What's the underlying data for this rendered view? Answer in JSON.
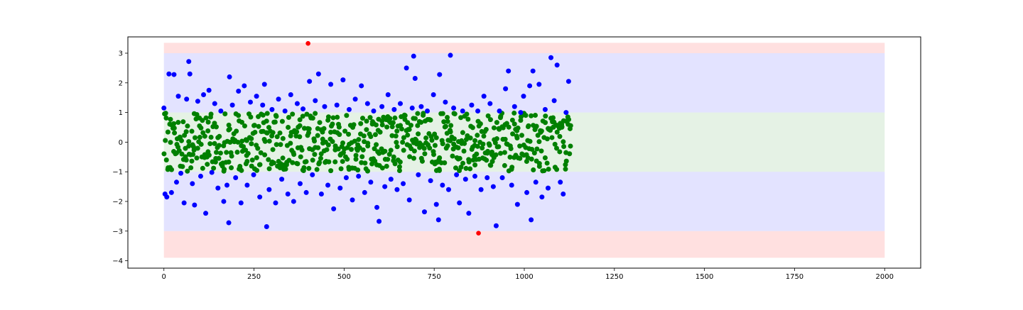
{
  "chart_data": {
    "type": "scatter",
    "title": "",
    "xlabel": "",
    "ylabel": "",
    "xlim": [
      -100,
      2100
    ],
    "ylim": [
      -4.25,
      3.55
    ],
    "x_ticks": [
      0,
      250,
      500,
      750,
      1000,
      1250,
      1500,
      1750,
      2000
    ],
    "x_tick_labels": [
      "0",
      "250",
      "500",
      "750",
      "1000",
      "1250",
      "1500",
      "1750",
      "2000"
    ],
    "y_ticks": [
      3,
      2,
      1,
      0,
      -1,
      -2,
      -3,
      -4
    ],
    "y_tick_labels": [
      "3",
      "2",
      "1",
      "0",
      "−1",
      "−2",
      "−3",
      "−4"
    ],
    "grid": false,
    "bands": [
      {
        "name": "",
        "x_range": [
          0,
          2000
        ],
        "y_range": [
          3.0,
          3.35
        ],
        "color": "#ff9999",
        "opacity": 0.3
      },
      {
        "name": "",
        "x_range": [
          0,
          2000
        ],
        "y_range": [
          -3.9,
          -3.0
        ],
        "color": "#ff9999",
        "opacity": 0.3
      },
      {
        "name": "",
        "x_range": [
          0,
          2000
        ],
        "y_range": [
          1.0,
          3.0
        ],
        "color": "#9999ff",
        "opacity": 0.27
      },
      {
        "name": "",
        "x_range": [
          0,
          2000
        ],
        "y_range": [
          -3.0,
          -1.0
        ],
        "color": "#9999ff",
        "opacity": 0.27
      },
      {
        "name": "",
        "x_range": [
          0,
          2000
        ],
        "y_range": [
          -1.0,
          1.0
        ],
        "color": "#99cc99",
        "opacity": 0.25
      }
    ],
    "series": [
      {
        "color": "#ff0000",
        "points": [
          {
            "x": 400,
            "y": 3.33
          },
          {
            "x": 873,
            "y": -3.07
          }
        ]
      },
      {
        "color": "#0000ff",
        "points": [
          {
            "x": 0,
            "y": 1.15
          },
          {
            "x": 3,
            "y": -1.75
          },
          {
            "x": 8,
            "y": -1.85
          },
          {
            "x": 14,
            "y": 2.3
          },
          {
            "x": 21,
            "y": -1.7
          },
          {
            "x": 28,
            "y": 2.28
          },
          {
            "x": 35,
            "y": -1.35
          },
          {
            "x": 40,
            "y": 1.55
          },
          {
            "x": 47,
            "y": -1.05
          },
          {
            "x": 56,
            "y": -2.05
          },
          {
            "x": 63,
            "y": 1.45
          },
          {
            "x": 69,
            "y": 2.72
          },
          {
            "x": 72,
            "y": 2.3
          },
          {
            "x": 79,
            "y": -1.4
          },
          {
            "x": 85,
            "y": -2.12
          },
          {
            "x": 94,
            "y": 1.38
          },
          {
            "x": 102,
            "y": -1.15
          },
          {
            "x": 110,
            "y": 1.6
          },
          {
            "x": 116,
            "y": -2.4
          },
          {
            "x": 125,
            "y": 1.75
          },
          {
            "x": 133,
            "y": -1.02
          },
          {
            "x": 141,
            "y": 1.3
          },
          {
            "x": 150,
            "y": -1.55
          },
          {
            "x": 158,
            "y": 1.05
          },
          {
            "x": 166,
            "y": -2.0
          },
          {
            "x": 175,
            "y": -1.45
          },
          {
            "x": 182,
            "y": 2.2
          },
          {
            "x": 180,
            "y": -2.72
          },
          {
            "x": 190,
            "y": 1.25
          },
          {
            "x": 199,
            "y": -1.2
          },
          {
            "x": 207,
            "y": 1.72
          },
          {
            "x": 214,
            "y": -2.05
          },
          {
            "x": 223,
            "y": 1.9
          },
          {
            "x": 231,
            "y": -1.45
          },
          {
            "x": 240,
            "y": 1.35
          },
          {
            "x": 249,
            "y": -1.1
          },
          {
            "x": 257,
            "y": 1.55
          },
          {
            "x": 266,
            "y": -1.85
          },
          {
            "x": 274,
            "y": 1.25
          },
          {
            "x": 279,
            "y": 1.95
          },
          {
            "x": 285,
            "y": -2.85
          },
          {
            "x": 292,
            "y": -1.6
          },
          {
            "x": 300,
            "y": 1.1
          },
          {
            "x": 310,
            "y": -2.05
          },
          {
            "x": 318,
            "y": 1.45
          },
          {
            "x": 327,
            "y": -1.25
          },
          {
            "x": 336,
            "y": 1.05
          },
          {
            "x": 344,
            "y": -1.75
          },
          {
            "x": 352,
            "y": 1.6
          },
          {
            "x": 360,
            "y": -2.0
          },
          {
            "x": 370,
            "y": 1.3
          },
          {
            "x": 378,
            "y": -1.4
          },
          {
            "x": 386,
            "y": 1.12
          },
          {
            "x": 395,
            "y": -1.7
          },
          {
            "x": 404,
            "y": 2.05
          },
          {
            "x": 412,
            "y": -1.1
          },
          {
            "x": 420,
            "y": 1.4
          },
          {
            "x": 429,
            "y": 2.3
          },
          {
            "x": 437,
            "y": -1.75
          },
          {
            "x": 446,
            "y": 1.2
          },
          {
            "x": 455,
            "y": -1.45
          },
          {
            "x": 463,
            "y": 1.95
          },
          {
            "x": 471,
            "y": -2.25
          },
          {
            "x": 480,
            "y": 1.25
          },
          {
            "x": 489,
            "y": -1.55
          },
          {
            "x": 497,
            "y": 2.1
          },
          {
            "x": 506,
            "y": -1.2
          },
          {
            "x": 514,
            "y": 1.1
          },
          {
            "x": 523,
            "y": -1.95
          },
          {
            "x": 531,
            "y": 1.45
          },
          {
            "x": 540,
            "y": -1.15
          },
          {
            "x": 548,
            "y": 1.9
          },
          {
            "x": 557,
            "y": -1.7
          },
          {
            "x": 565,
            "y": 1.3
          },
          {
            "x": 574,
            "y": -1.35
          },
          {
            "x": 582,
            "y": 1.05
          },
          {
            "x": 591,
            "y": -2.2
          },
          {
            "x": 597,
            "y": -2.67
          },
          {
            "x": 605,
            "y": 1.2
          },
          {
            "x": 613,
            "y": -1.5
          },
          {
            "x": 622,
            "y": 1.6
          },
          {
            "x": 630,
            "y": -1.25
          },
          {
            "x": 639,
            "y": 1.1
          },
          {
            "x": 647,
            "y": -1.6
          },
          {
            "x": 656,
            "y": 1.3
          },
          {
            "x": 664,
            "y": -1.4
          },
          {
            "x": 673,
            "y": 2.5
          },
          {
            "x": 681,
            "y": -1.95
          },
          {
            "x": 689,
            "y": 1.15
          },
          {
            "x": 693,
            "y": 2.9
          },
          {
            "x": 697,
            "y": 2.15
          },
          {
            "x": 706,
            "y": -1.1
          },
          {
            "x": 714,
            "y": 1.2
          },
          {
            "x": 723,
            "y": -2.35
          },
          {
            "x": 731,
            "y": 1.05
          },
          {
            "x": 740,
            "y": -1.3
          },
          {
            "x": 748,
            "y": 1.6
          },
          {
            "x": 756,
            "y": -2.1
          },
          {
            "x": 762,
            "y": -2.62
          },
          {
            "x": 765,
            "y": 2.28
          },
          {
            "x": 773,
            "y": -1.45
          },
          {
            "x": 781,
            "y": 1.35
          },
          {
            "x": 790,
            "y": -1.6
          },
          {
            "x": 795,
            "y": 2.93
          },
          {
            "x": 804,
            "y": 1.15
          },
          {
            "x": 812,
            "y": -1.1
          },
          {
            "x": 820,
            "y": -2.05
          },
          {
            "x": 829,
            "y": 1.05
          },
          {
            "x": 837,
            "y": -1.25
          },
          {
            "x": 846,
            "y": -2.4
          },
          {
            "x": 854,
            "y": 1.25
          },
          {
            "x": 863,
            "y": -1.15
          },
          {
            "x": 871,
            "y": 1.05
          },
          {
            "x": 880,
            "y": -1.6
          },
          {
            "x": 888,
            "y": 1.55
          },
          {
            "x": 897,
            "y": -1.2
          },
          {
            "x": 905,
            "y": 1.3
          },
          {
            "x": 914,
            "y": -1.5
          },
          {
            "x": 922,
            "y": -2.82
          },
          {
            "x": 931,
            "y": 1.05
          },
          {
            "x": 939,
            "y": -1.2
          },
          {
            "x": 948,
            "y": 1.8
          },
          {
            "x": 956,
            "y": 2.4
          },
          {
            "x": 965,
            "y": -1.45
          },
          {
            "x": 973,
            "y": 1.2
          },
          {
            "x": 981,
            "y": -2.1
          },
          {
            "x": 990,
            "y": 1.0
          },
          {
            "x": 998,
            "y": 1.55
          },
          {
            "x": 1007,
            "y": -1.7
          },
          {
            "x": 1015,
            "y": 1.9
          },
          {
            "x": 1019,
            "y": -2.62
          },
          {
            "x": 1024,
            "y": 2.4
          },
          {
            "x": 1032,
            "y": -1.35
          },
          {
            "x": 1041,
            "y": 1.95
          },
          {
            "x": 1049,
            "y": -1.85
          },
          {
            "x": 1058,
            "y": 1.1
          },
          {
            "x": 1066,
            "y": -1.55
          },
          {
            "x": 1074,
            "y": 2.85
          },
          {
            "x": 1083,
            "y": 1.4
          },
          {
            "x": 1091,
            "y": 2.6
          },
          {
            "x": 1100,
            "y": -1.35
          },
          {
            "x": 1108,
            "y": -1.75
          },
          {
            "x": 1116,
            "y": 1.0
          },
          {
            "x": 1123,
            "y": 2.05
          }
        ]
      },
      {
        "color": "#008000",
        "generated": true,
        "x_range": [
          0,
          1130
        ],
        "y_range": [
          -0.98,
          0.98
        ],
        "count": 700
      }
    ]
  }
}
